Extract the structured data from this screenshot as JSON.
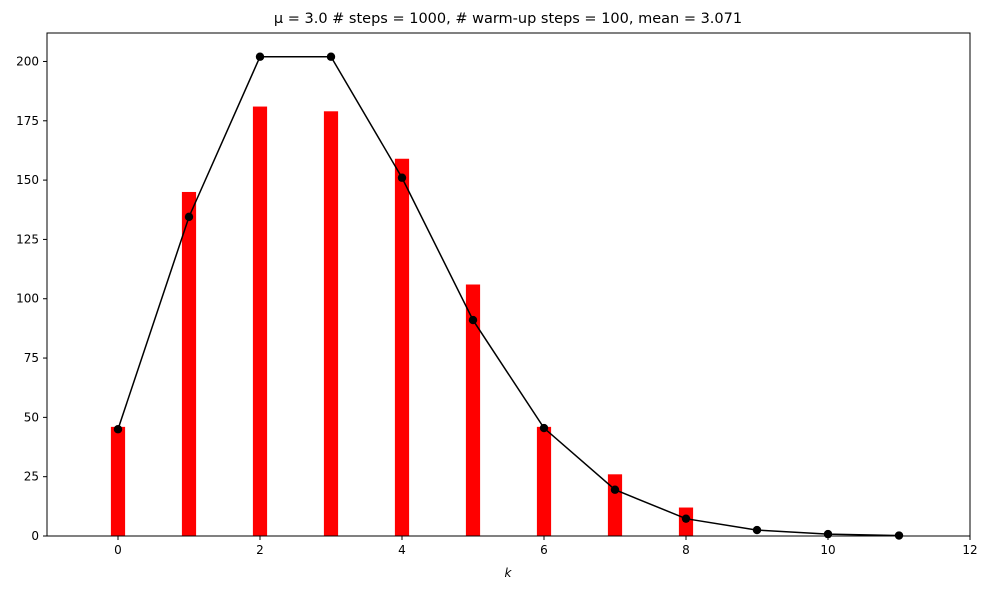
{
  "chart_data": {
    "type": "bar",
    "title": "μ = 3.0  # steps = 1000, # warm-up steps = 100, mean = 3.071",
    "xlabel": "k",
    "ylabel": "",
    "xlim": [
      -1,
      12
    ],
    "ylim": [
      0,
      212
    ],
    "xticks": [
      0,
      2,
      4,
      6,
      8,
      10,
      12
    ],
    "yticks": [
      0,
      25,
      50,
      75,
      100,
      125,
      150,
      175,
      200
    ],
    "grid": false,
    "legend": "none",
    "bar_color": "#ff0000",
    "line_color": "#000000",
    "bars": {
      "x": [
        0,
        1,
        2,
        3,
        4,
        5,
        6,
        7,
        8
      ],
      "values": [
        46,
        145,
        181,
        179,
        159,
        106,
        46,
        26,
        12
      ]
    },
    "line": {
      "x": [
        0,
        1,
        2,
        3,
        4,
        5,
        6,
        7,
        8,
        9,
        10,
        11
      ],
      "values": [
        45,
        134.5,
        202,
        202,
        151,
        91,
        45.5,
        19.5,
        7.3,
        2.5,
        0.8,
        0.2
      ]
    }
  }
}
